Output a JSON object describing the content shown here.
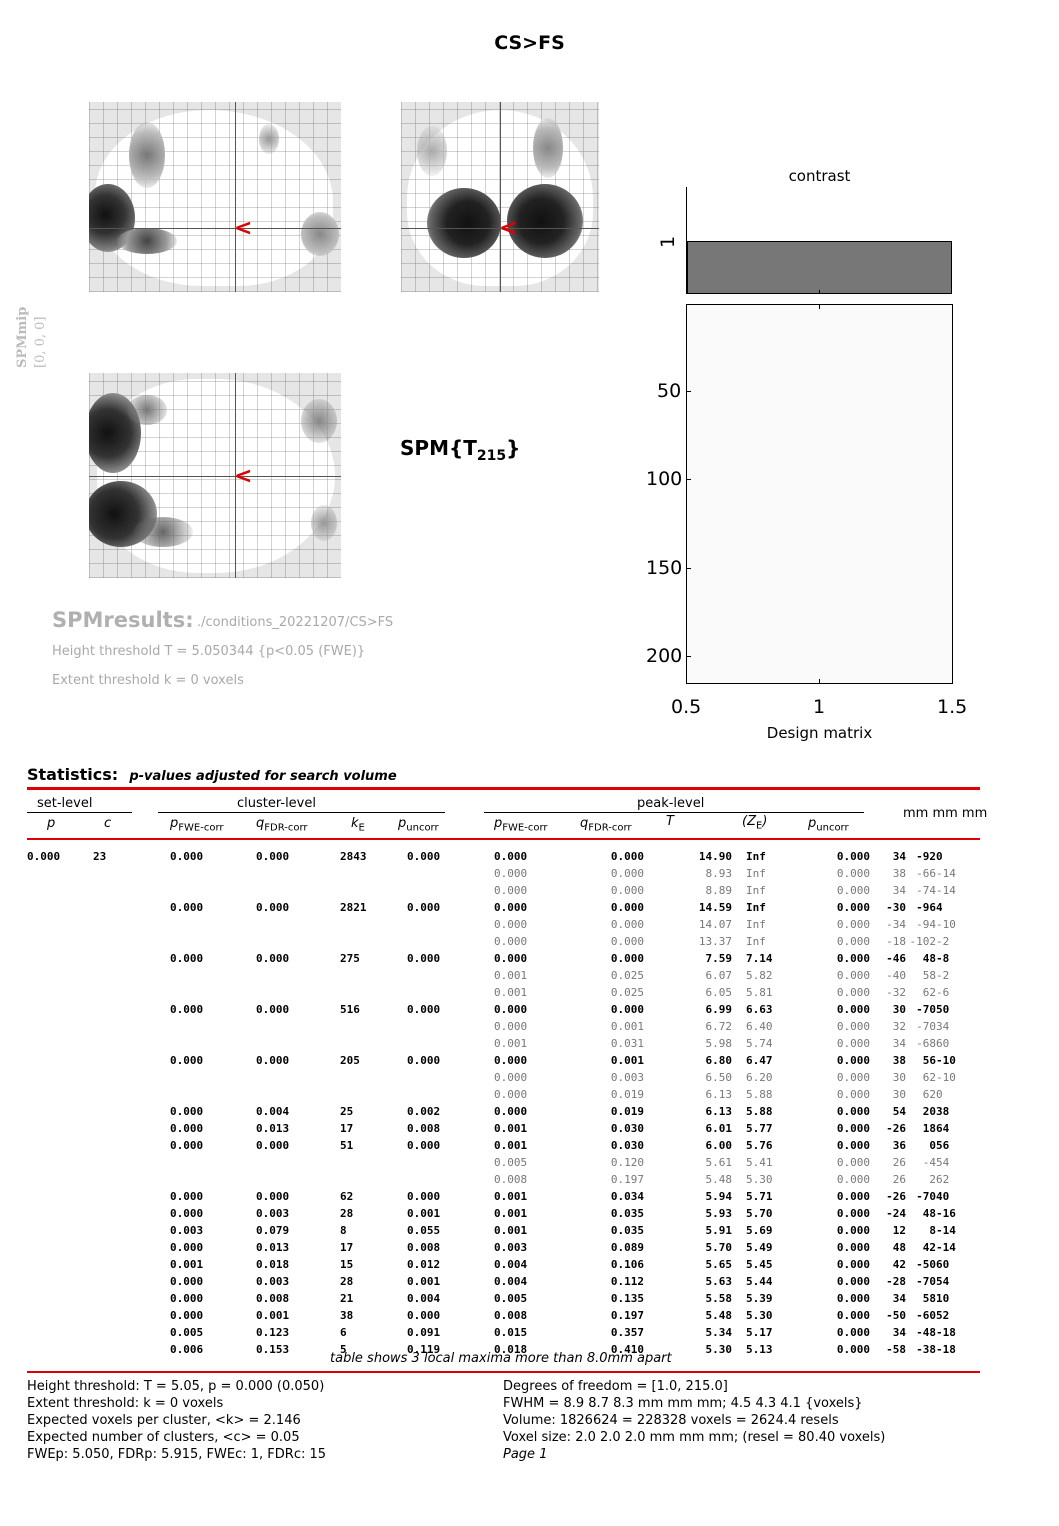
{
  "page_title": "CS>FS",
  "spm_mip_label": "SPMmip",
  "spm_mip_coords": "[0, 0, 0]",
  "spm_stat_label": "SPM{T",
  "spm_stat_df": "215",
  "spm_stat_close": "}",
  "results": {
    "title": "SPMresults:",
    "path": "./conditions_20221207/CS>FS",
    "height_threshold": "Height threshold T = 5.050344  {p<0.05 (FWE)}",
    "extent_threshold": "Extent threshold k = 0 voxels"
  },
  "contrast_label": "contrast",
  "contrast_tick": "1",
  "design_matrix": {
    "xlabel": "Design matrix",
    "yticks": [
      "50",
      "100",
      "150",
      "200"
    ],
    "xticks": [
      "0.5",
      "1",
      "1.5"
    ]
  },
  "statistics": {
    "heading": "Statistics:",
    "subheading": "p-values adjusted for search volume",
    "group_set": "set-level",
    "group_cluster": "cluster-level",
    "group_peak": "peak-level",
    "coords_header": "mm mm mm",
    "col_p": "p",
    "col_c": "c",
    "col_pfwe": "p",
    "col_pfwe_sub": "FWE-corr",
    "col_qfdr": "q",
    "col_qfdr_sub": "FDR-corr",
    "col_k": "k",
    "col_k_sub": "E",
    "col_punc": "p",
    "col_punc_sub": "uncorr",
    "col_T": "T",
    "col_Z_open": "(Z",
    "col_Z_sub": "E",
    "col_Z_close": ")",
    "rows": [
      {
        "bold": true,
        "cells": [
          "0.000",
          "23",
          "0.000",
          "0.000",
          "2843",
          "0.000",
          "0.000",
          "0.000",
          "14.90",
          "Inf",
          "0.000",
          "34",
          "-92",
          "0"
        ]
      },
      {
        "bold": false,
        "cells": [
          "",
          "",
          "",
          "",
          "",
          "",
          "0.000",
          "0.000",
          "8.93",
          "Inf",
          "0.000",
          "38",
          "-66",
          "-14"
        ]
      },
      {
        "bold": false,
        "cells": [
          "",
          "",
          "",
          "",
          "",
          "",
          "0.000",
          "0.000",
          "8.89",
          "Inf",
          "0.000",
          "34",
          "-74",
          "-14"
        ]
      },
      {
        "bold": true,
        "cells": [
          "",
          "",
          "0.000",
          "0.000",
          "2821",
          "0.000",
          "0.000",
          "0.000",
          "14.59",
          "Inf",
          "0.000",
          "-30",
          "-96",
          "4"
        ]
      },
      {
        "bold": false,
        "cells": [
          "",
          "",
          "",
          "",
          "",
          "",
          "0.000",
          "0.000",
          "14.07",
          "Inf",
          "0.000",
          "-34",
          "-94",
          "-10"
        ]
      },
      {
        "bold": false,
        "cells": [
          "",
          "",
          "",
          "",
          "",
          "",
          "0.000",
          "0.000",
          "13.37",
          "Inf",
          "0.000",
          "-18",
          "-102",
          "-2"
        ]
      },
      {
        "bold": true,
        "cells": [
          "",
          "",
          "0.000",
          "0.000",
          "275",
          "0.000",
          "0.000",
          "0.000",
          "7.59",
          "7.14",
          "0.000",
          "-46",
          "48",
          "-8"
        ]
      },
      {
        "bold": false,
        "cells": [
          "",
          "",
          "",
          "",
          "",
          "",
          "0.001",
          "0.025",
          "6.07",
          "5.82",
          "0.000",
          "-40",
          "58",
          "-2"
        ]
      },
      {
        "bold": false,
        "cells": [
          "",
          "",
          "",
          "",
          "",
          "",
          "0.001",
          "0.025",
          "6.05",
          "5.81",
          "0.000",
          "-32",
          "62",
          "-6"
        ]
      },
      {
        "bold": true,
        "cells": [
          "",
          "",
          "0.000",
          "0.000",
          "516",
          "0.000",
          "0.000",
          "0.000",
          "6.99",
          "6.63",
          "0.000",
          "30",
          "-70",
          "50"
        ]
      },
      {
        "bold": false,
        "cells": [
          "",
          "",
          "",
          "",
          "",
          "",
          "0.000",
          "0.001",
          "6.72",
          "6.40",
          "0.000",
          "32",
          "-70",
          "34"
        ]
      },
      {
        "bold": false,
        "cells": [
          "",
          "",
          "",
          "",
          "",
          "",
          "0.001",
          "0.031",
          "5.98",
          "5.74",
          "0.000",
          "34",
          "-68",
          "60"
        ]
      },
      {
        "bold": true,
        "cells": [
          "",
          "",
          "0.000",
          "0.000",
          "205",
          "0.000",
          "0.000",
          "0.001",
          "6.80",
          "6.47",
          "0.000",
          "38",
          "56",
          "-10"
        ]
      },
      {
        "bold": false,
        "cells": [
          "",
          "",
          "",
          "",
          "",
          "",
          "0.000",
          "0.003",
          "6.50",
          "6.20",
          "0.000",
          "30",
          "62",
          "-10"
        ]
      },
      {
        "bold": false,
        "cells": [
          "",
          "",
          "",
          "",
          "",
          "",
          "0.000",
          "0.019",
          "6.13",
          "5.88",
          "0.000",
          "30",
          "62",
          "0"
        ]
      },
      {
        "bold": true,
        "cells": [
          "",
          "",
          "0.000",
          "0.004",
          "25",
          "0.002",
          "0.000",
          "0.019",
          "6.13",
          "5.88",
          "0.000",
          "54",
          "20",
          "38"
        ]
      },
      {
        "bold": true,
        "cells": [
          "",
          "",
          "0.000",
          "0.013",
          "17",
          "0.008",
          "0.001",
          "0.030",
          "6.01",
          "5.77",
          "0.000",
          "-26",
          "18",
          "64"
        ]
      },
      {
        "bold": true,
        "cells": [
          "",
          "",
          "0.000",
          "0.000",
          "51",
          "0.000",
          "0.001",
          "0.030",
          "6.00",
          "5.76",
          "0.000",
          "36",
          "0",
          "56"
        ]
      },
      {
        "bold": false,
        "cells": [
          "",
          "",
          "",
          "",
          "",
          "",
          "0.005",
          "0.120",
          "5.61",
          "5.41",
          "0.000",
          "26",
          "-4",
          "54"
        ]
      },
      {
        "bold": false,
        "cells": [
          "",
          "",
          "",
          "",
          "",
          "",
          "0.008",
          "0.197",
          "5.48",
          "5.30",
          "0.000",
          "26",
          "2",
          "62"
        ]
      },
      {
        "bold": true,
        "cells": [
          "",
          "",
          "0.000",
          "0.000",
          "62",
          "0.000",
          "0.001",
          "0.034",
          "5.94",
          "5.71",
          "0.000",
          "-26",
          "-70",
          "40"
        ]
      },
      {
        "bold": true,
        "cells": [
          "",
          "",
          "0.000",
          "0.003",
          "28",
          "0.001",
          "0.001",
          "0.035",
          "5.93",
          "5.70",
          "0.000",
          "-24",
          "48",
          "-16"
        ]
      },
      {
        "bold": true,
        "cells": [
          "",
          "",
          "0.003",
          "0.079",
          "8",
          "0.055",
          "0.001",
          "0.035",
          "5.91",
          "5.69",
          "0.000",
          "12",
          "8",
          "-14"
        ]
      },
      {
        "bold": true,
        "cells": [
          "",
          "",
          "0.000",
          "0.013",
          "17",
          "0.008",
          "0.003",
          "0.089",
          "5.70",
          "5.49",
          "0.000",
          "48",
          "42",
          "-14"
        ]
      },
      {
        "bold": true,
        "cells": [
          "",
          "",
          "0.001",
          "0.018",
          "15",
          "0.012",
          "0.004",
          "0.106",
          "5.65",
          "5.45",
          "0.000",
          "42",
          "-50",
          "60"
        ]
      },
      {
        "bold": true,
        "cells": [
          "",
          "",
          "0.000",
          "0.003",
          "28",
          "0.001",
          "0.004",
          "0.112",
          "5.63",
          "5.44",
          "0.000",
          "-28",
          "-70",
          "54"
        ]
      },
      {
        "bold": true,
        "cells": [
          "",
          "",
          "0.000",
          "0.008",
          "21",
          "0.004",
          "0.005",
          "0.135",
          "5.58",
          "5.39",
          "0.000",
          "34",
          "58",
          "10"
        ]
      },
      {
        "bold": true,
        "cells": [
          "",
          "",
          "0.000",
          "0.001",
          "38",
          "0.000",
          "0.008",
          "0.197",
          "5.48",
          "5.30",
          "0.000",
          "-50",
          "-60",
          "52"
        ]
      },
      {
        "bold": true,
        "cells": [
          "",
          "",
          "0.005",
          "0.123",
          "6",
          "0.091",
          "0.015",
          "0.357",
          "5.34",
          "5.17",
          "0.000",
          "34",
          "-48",
          "-18"
        ]
      },
      {
        "bold": true,
        "cells": [
          "",
          "",
          "0.006",
          "0.153",
          "5",
          "0.119",
          "0.018",
          "0.410",
          "5.30",
          "5.13",
          "0.000",
          "-58",
          "-38",
          "-18"
        ]
      }
    ],
    "footnote": "table shows 3 local maxima more than 8.0mm apart"
  },
  "footer": {
    "left": [
      "Height threshold: T = 5.05, p = 0.000 (0.050)",
      "Extent threshold: k = 0 voxels",
      "Expected voxels per cluster, <k> = 2.146",
      "Expected number of clusters, <c> = 0.05",
      "FWEp: 5.050, FDRp: 5.915, FWEc: 1, FDRc: 15"
    ],
    "right": [
      "Degrees of freedom = [1.0, 215.0]",
      "FWHM = 8.9 8.7 8.3 mm mm mm; 4.5 4.3 4.1 {voxels}",
      "Volume: 1826624 = 228328 voxels = 2624.4 resels",
      "Voxel size: 2.0 2.0 2.0 mm mm mm; (resel = 80.40 voxels)",
      "Page 1"
    ]
  },
  "colors": {
    "accent_red": "#e00000",
    "glass_bg": "#e6e6e6",
    "contrast_bar": "#777777"
  }
}
